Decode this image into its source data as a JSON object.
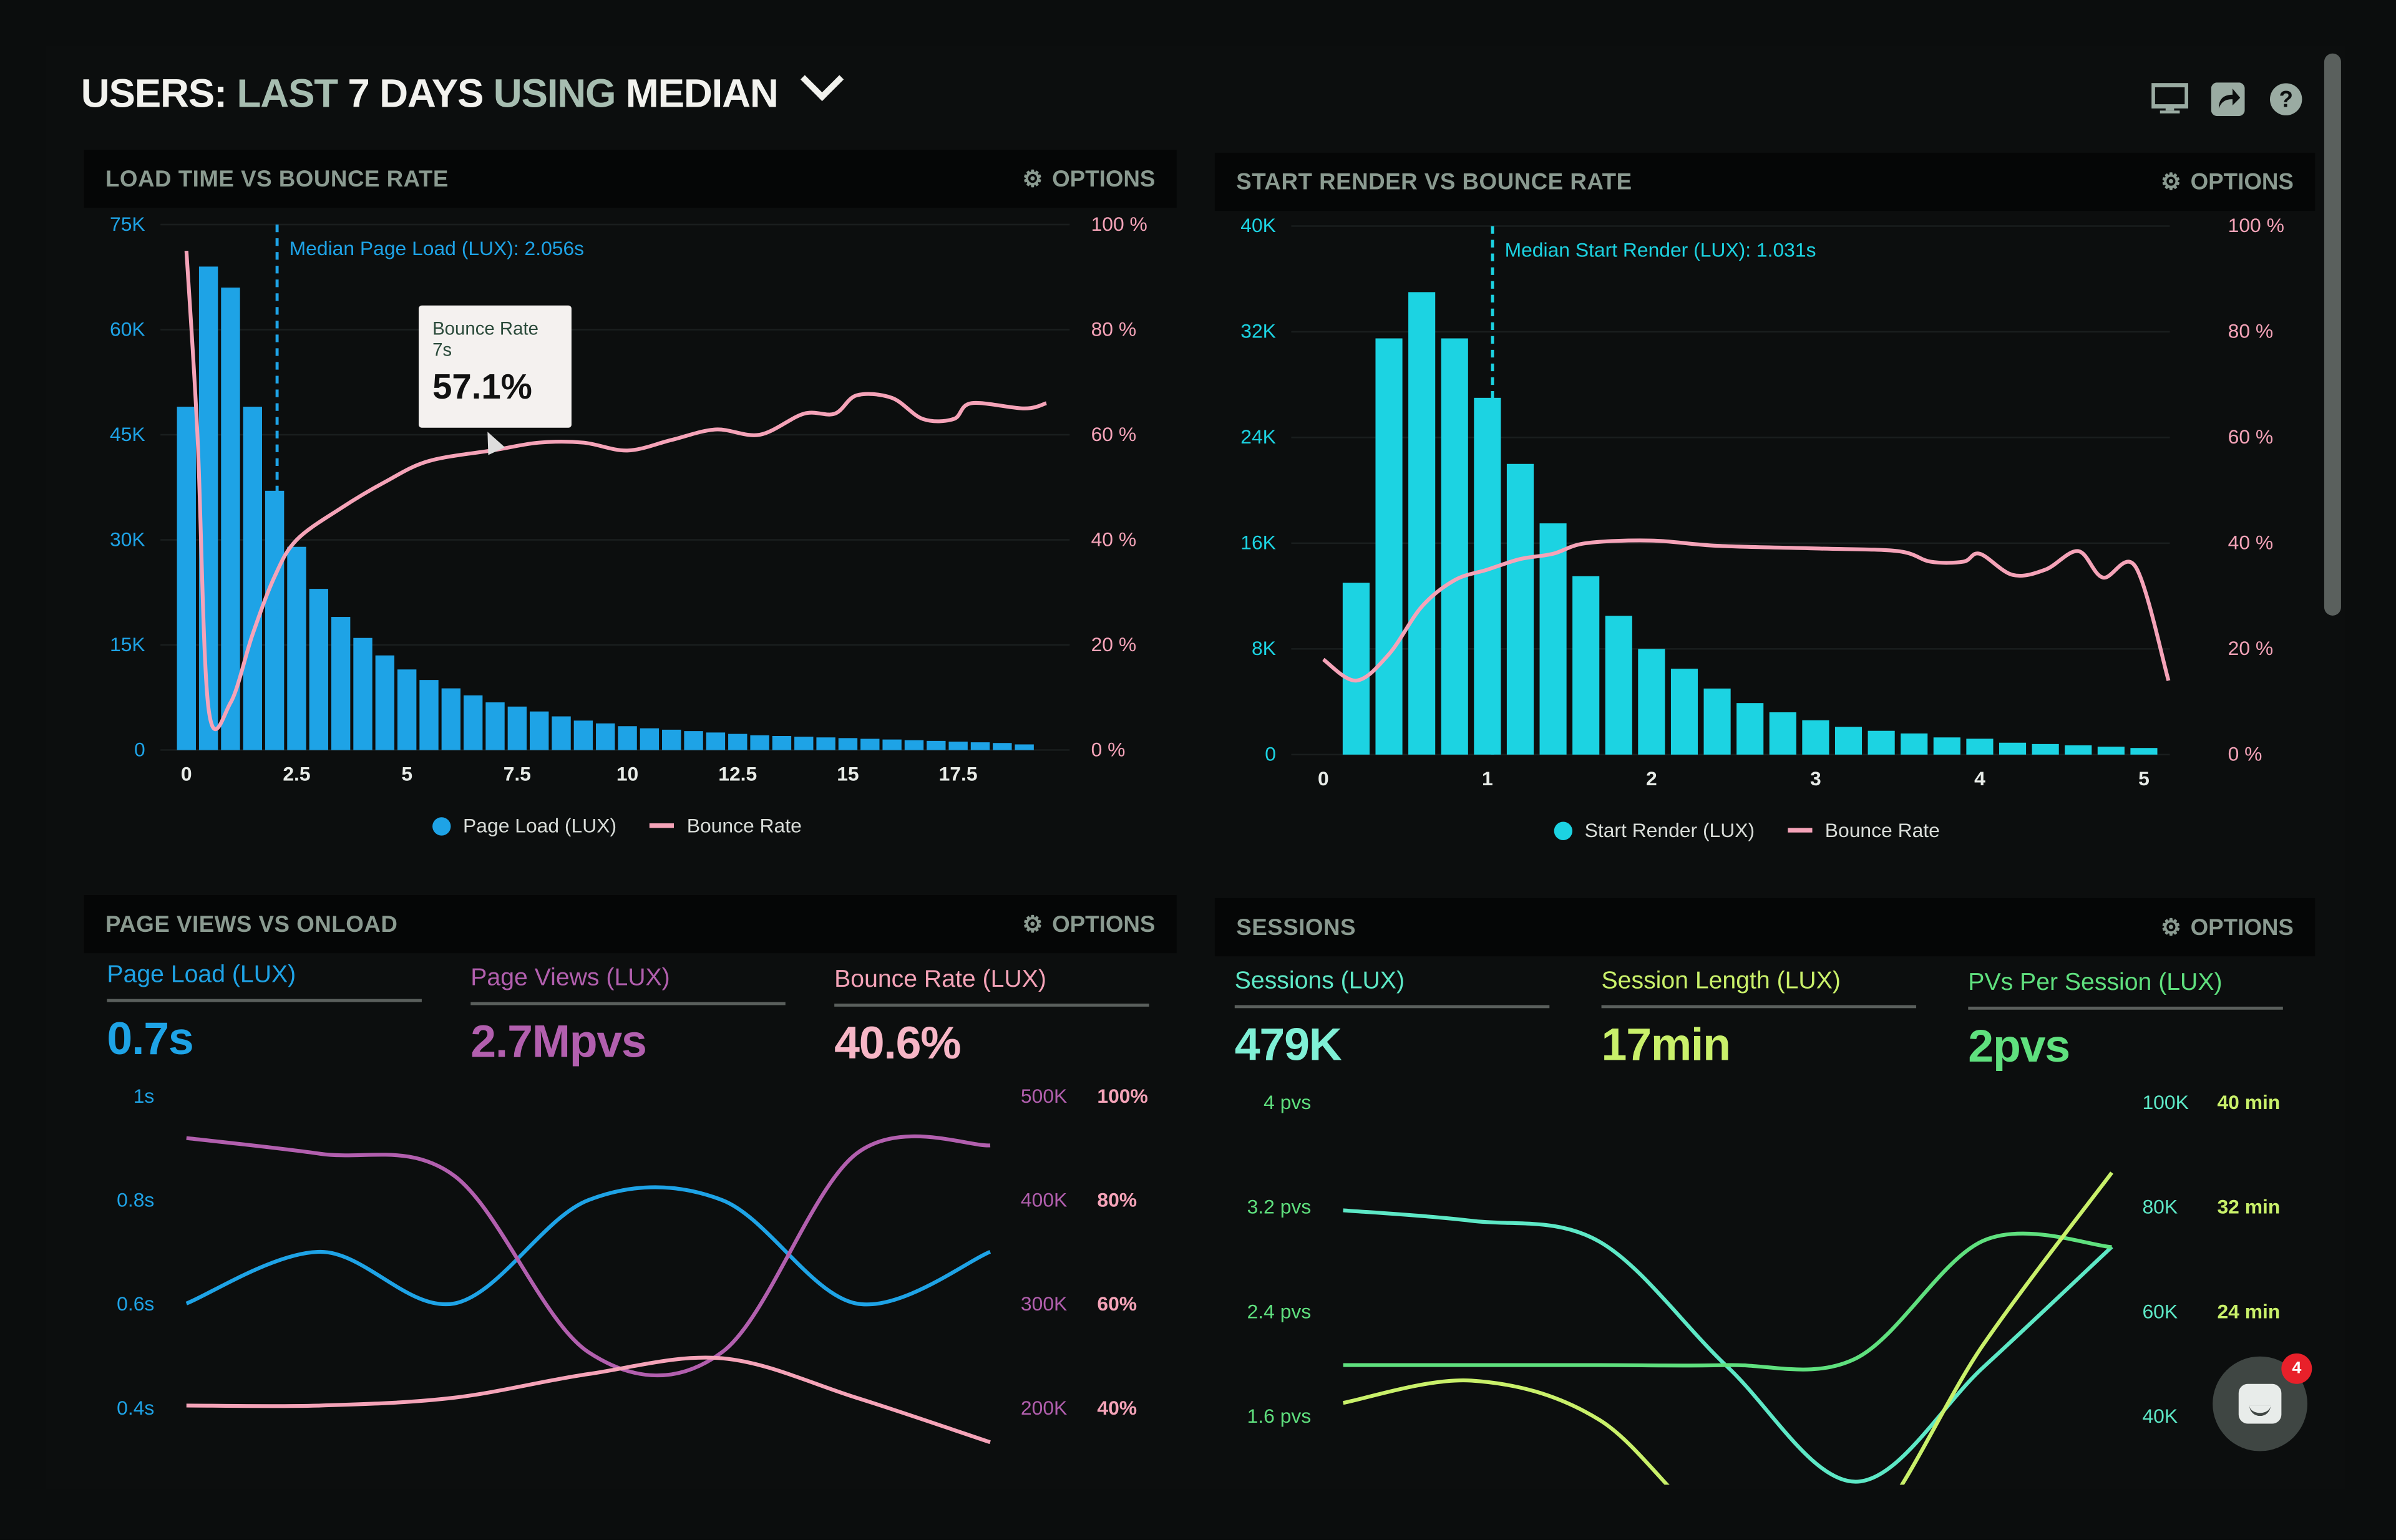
{
  "header": {
    "title_parts": [
      "USERS:",
      "LAST",
      "7 DAYS",
      "USING",
      "MEDIAN"
    ],
    "icons": [
      "monitor-icon",
      "share-icon",
      "help-icon"
    ]
  },
  "colors": {
    "page_load": "#1ea3e6",
    "start_render": "#1cd3e2",
    "bounce": "#f5a3b8",
    "page_views": "#b25fae",
    "sessions": "#5de8c6",
    "session_length": "#c9f06a",
    "pvs_per_session": "#5fe07e"
  },
  "panels": {
    "load_time": {
      "title": "LOAD TIME VS BOUNCE RATE",
      "options": "OPTIONS"
    },
    "start_render": {
      "title": "START RENDER VS BOUNCE RATE",
      "options": "OPTIONS"
    },
    "page_views": {
      "title": "PAGE VIEWS VS ONLOAD",
      "options": "OPTIONS",
      "metrics": [
        {
          "label": "Page Load (LUX)",
          "value": "0.7s"
        },
        {
          "label": "Page Views (LUX)",
          "value": "2.7Mpvs"
        },
        {
          "label": "Bounce Rate (LUX)",
          "value": "40.6%"
        }
      ]
    },
    "sessions": {
      "title": "SESSIONS",
      "options": "OPTIONS",
      "metrics": [
        {
          "label": "Sessions (LUX)",
          "value": "479K"
        },
        {
          "label": "Session Length (LUX)",
          "value": "17min"
        },
        {
          "label": "PVs Per Session (LUX)",
          "value": "2pvs"
        }
      ]
    }
  },
  "tooltip": {
    "label": "Bounce Rate",
    "x": "7s",
    "value": "57.1%"
  },
  "chat": {
    "badge": "4"
  },
  "chart_data": [
    {
      "type": "bar",
      "title": "LOAD TIME VS BOUNCE RATE",
      "x_ticks": [
        "0",
        "2.5",
        "5",
        "7.5",
        "10",
        "12.5",
        "15",
        "17.5"
      ],
      "y_left_ticks": [
        "0",
        "15K",
        "30K",
        "45K",
        "60K",
        "75K"
      ],
      "y_right_ticks": [
        "0 %",
        "20 %",
        "40 %",
        "60 %",
        "80 %",
        "100 %"
      ],
      "ylim_left": [
        0,
        75000
      ],
      "ylim_right": [
        0,
        100
      ],
      "xlim": [
        0,
        19.5
      ],
      "legend": [
        "Page Load (LUX)",
        "Bounce Rate"
      ],
      "legend_position": "bottom",
      "annotation": "Median Page Load (LUX): 2.056s",
      "median_x": 2.056,
      "series": [
        {
          "name": "Page Load (LUX)",
          "type": "bar",
          "bin_width": 0.5,
          "x": [
            0,
            0.5,
            1,
            1.5,
            2,
            2.5,
            3,
            3.5,
            4,
            4.5,
            5,
            5.5,
            6,
            6.5,
            7,
            7.5,
            8,
            8.5,
            9,
            9.5,
            10,
            10.5,
            11,
            11.5,
            12,
            12.5,
            13,
            13.5,
            14,
            14.5,
            15,
            15.5,
            16,
            16.5,
            17,
            17.5,
            18,
            18.5,
            19
          ],
          "values": [
            49000,
            69000,
            66000,
            49000,
            37000,
            29000,
            23000,
            19000,
            16000,
            13500,
            11500,
            10000,
            8800,
            7800,
            6800,
            6200,
            5500,
            4800,
            4200,
            3800,
            3400,
            3100,
            2900,
            2700,
            2500,
            2300,
            2100,
            2000,
            1900,
            1800,
            1700,
            1600,
            1500,
            1400,
            1300,
            1200,
            1100,
            1000,
            800
          ]
        },
        {
          "name": "Bounce Rate",
          "type": "line",
          "x": [
            0,
            0.25,
            0.5,
            1,
            1.5,
            2,
            2.5,
            3.5,
            4.5,
            5.5,
            7,
            8,
            9,
            10,
            11,
            12,
            13,
            14,
            14.7,
            15.2,
            16,
            16.7,
            17.4,
            17.8,
            19,
            19.5
          ],
          "values": [
            95,
            60,
            8,
            9,
            22,
            33,
            40,
            46,
            51,
            55,
            57.1,
            58.5,
            58.5,
            57,
            59,
            61,
            60,
            64,
            64,
            67.5,
            67,
            63,
            63,
            66,
            65,
            66
          ]
        }
      ]
    },
    {
      "type": "bar",
      "title": "START RENDER VS BOUNCE RATE",
      "x_ticks": [
        "0",
        "1",
        "2",
        "3",
        "4",
        "5"
      ],
      "y_left_ticks": [
        "0",
        "8K",
        "16K",
        "24K",
        "32K",
        "40K"
      ],
      "y_right_ticks": [
        "0 %",
        "20 %",
        "40 %",
        "60 %",
        "80 %",
        "100 %"
      ],
      "ylim_left": [
        0,
        40000
      ],
      "ylim_right": [
        0,
        100
      ],
      "xlim": [
        0,
        5.2
      ],
      "legend": [
        "Start Render (LUX)",
        "Bounce Rate"
      ],
      "legend_position": "bottom",
      "annotation": "Median Start Render (LUX): 1.031s",
      "median_x": 1.031,
      "series": [
        {
          "name": "Start Render (LUX)",
          "type": "bar",
          "bin_width": 0.2,
          "x": [
            0.2,
            0.4,
            0.6,
            0.8,
            1,
            1.2,
            1.4,
            1.6,
            1.8,
            2,
            2.2,
            2.4,
            2.6,
            2.8,
            3,
            3.2,
            3.4,
            3.6,
            3.8,
            4,
            4.2,
            4.4,
            4.6,
            4.8,
            5
          ],
          "values": [
            13000,
            31500,
            35000,
            31500,
            27000,
            22000,
            17500,
            13500,
            10500,
            8000,
            6500,
            5000,
            3900,
            3200,
            2600,
            2100,
            1800,
            1600,
            1300,
            1200,
            900,
            800,
            700,
            600,
            500
          ]
        },
        {
          "name": "Bounce Rate",
          "type": "line",
          "x": [
            0,
            0.2,
            0.4,
            0.6,
            0.8,
            1,
            1.2,
            1.4,
            1.6,
            2,
            2.4,
            3,
            3.5,
            3.7,
            3.9,
            4,
            4.2,
            4.4,
            4.6,
            4.75,
            4.95,
            5.15
          ],
          "values": [
            18,
            14,
            19,
            28,
            33,
            35,
            37,
            38,
            40,
            40.5,
            39.5,
            39,
            38.5,
            36.5,
            36.5,
            38,
            34,
            35,
            38.5,
            33.5,
            35.5,
            14
          ]
        }
      ]
    },
    {
      "type": "line",
      "title": "PAGE VIEWS VS ONLOAD",
      "y_left_ticks": [
        "1s",
        "0.8s",
        "0.6s",
        "0.4s"
      ],
      "y_right_ticks_a": [
        "500K",
        "400K",
        "300K",
        "200K"
      ],
      "y_right_ticks_b": [
        "100%",
        "80%",
        "60%",
        "40%"
      ],
      "series": [
        {
          "name": "Page Load (LUX)",
          "axis": "left",
          "values": [
            0.6,
            0.7,
            0.6,
            0.8,
            0.8,
            0.6,
            0.7
          ]
        },
        {
          "name": "Page Views (LUX)",
          "axis": "right_a",
          "values": [
            465,
            450,
            429,
            261,
            261,
            450,
            458
          ]
        },
        {
          "name": "Bounce Rate (LUX)",
          "axis": "right_b",
          "values": [
            42,
            42,
            43.5,
            48,
            51,
            43.5,
            35
          ]
        }
      ]
    },
    {
      "type": "line",
      "title": "SESSIONS",
      "y_left_ticks": [
        "4 pvs",
        "3.2 pvs",
        "2.4 pvs",
        "1.6 pvs"
      ],
      "y_right_ticks_a": [
        "100K",
        "80K",
        "60K",
        "40K"
      ],
      "y_right_ticks_b": [
        "40 min",
        "32 min",
        "24 min"
      ],
      "series": [
        {
          "name": "Sessions (LUX)",
          "axis": "right_a",
          "values": [
            80,
            78,
            74,
            50,
            28,
            50,
            73
          ]
        },
        {
          "name": "PVs Per Session (LUX)",
          "axis": "left",
          "values": [
            2.0,
            2.0,
            2.0,
            2.0,
            2.05,
            2.95,
            2.9
          ]
        },
        {
          "name": "Session Length (LUX)",
          "axis": "right_b",
          "values": [
            17.3,
            19,
            16,
            7,
            6.6,
            21.8,
            34.9
          ]
        }
      ]
    }
  ]
}
